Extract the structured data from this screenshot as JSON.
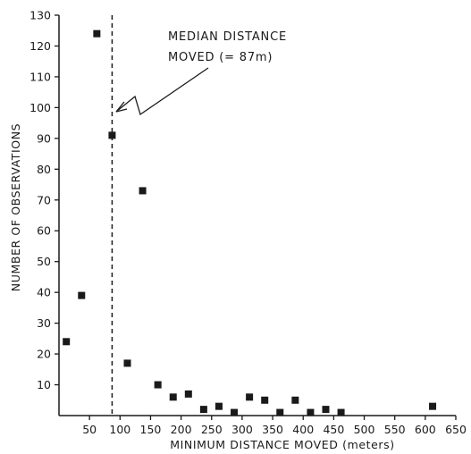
{
  "chart_data": {
    "type": "scatter",
    "title": "",
    "xlabel": "MINIMUM DISTANCE MOVED (meters)",
    "ylabel": "NUMBER OF OBSERVATIONS",
    "xlim": [
      0,
      650
    ],
    "ylim": [
      0,
      130
    ],
    "x_ticks": [
      50,
      100,
      150,
      200,
      250,
      300,
      350,
      400,
      450,
      500,
      550,
      600,
      650
    ],
    "y_ticks": [
      10,
      20,
      30,
      40,
      50,
      60,
      70,
      80,
      90,
      100,
      110,
      120,
      130
    ],
    "grid": false,
    "points": [
      {
        "x": 12,
        "y": 24
      },
      {
        "x": 37,
        "y": 39
      },
      {
        "x": 62,
        "y": 124
      },
      {
        "x": 87,
        "y": 91
      },
      {
        "x": 137,
        "y": 73
      },
      {
        "x": 112,
        "y": 17
      },
      {
        "x": 162,
        "y": 10
      },
      {
        "x": 187,
        "y": 6
      },
      {
        "x": 212,
        "y": 7
      },
      {
        "x": 237,
        "y": 2
      },
      {
        "x": 262,
        "y": 3
      },
      {
        "x": 287,
        "y": 1
      },
      {
        "x": 312,
        "y": 6
      },
      {
        "x": 337,
        "y": 5
      },
      {
        "x": 362,
        "y": 1
      },
      {
        "x": 387,
        "y": 5
      },
      {
        "x": 412,
        "y": 1
      },
      {
        "x": 437,
        "y": 2
      },
      {
        "x": 462,
        "y": 1
      },
      {
        "x": 612,
        "y": 3
      }
    ],
    "median_line": {
      "x": 87
    },
    "annotation": {
      "line1": "MEDIAN DISTANCE",
      "line2": "MOVED (= 87m)"
    }
  }
}
